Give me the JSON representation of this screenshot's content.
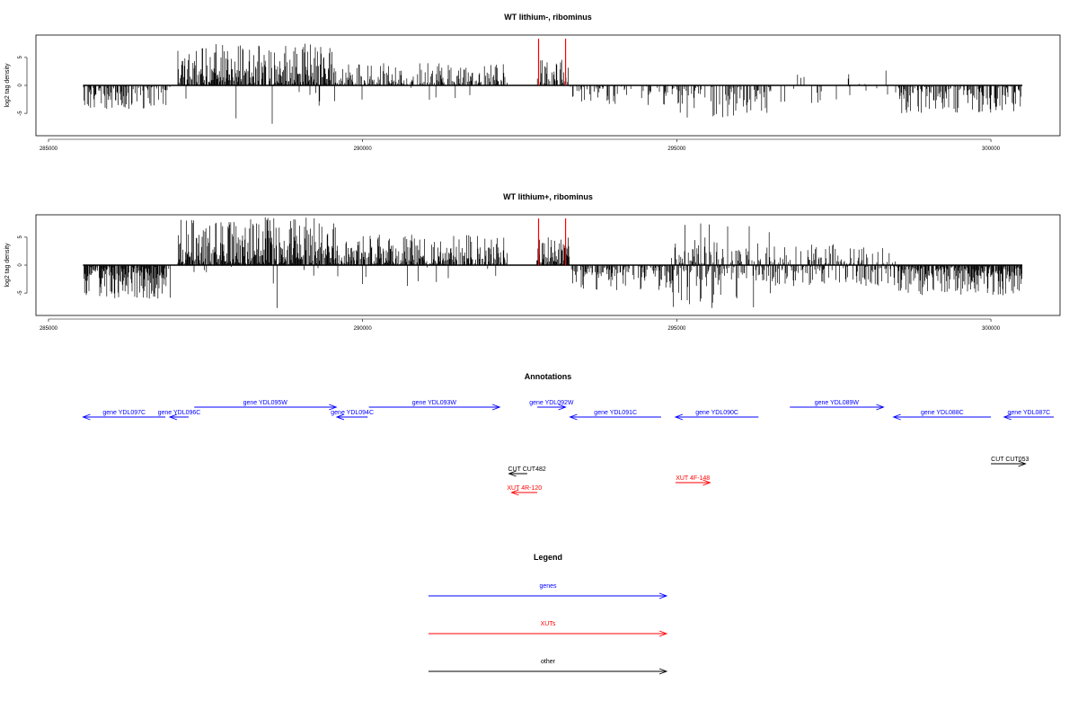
{
  "chart_data": [
    {
      "type": "bar",
      "title": "WT lithium-, ribominus",
      "xlabel": "",
      "ylabel": "log2 tag density",
      "xlim": [
        284800,
        301100
      ],
      "ylim": [
        -9,
        9
      ],
      "x_ticks": [
        285000,
        290000,
        295000,
        300000
      ],
      "y_ticks": [
        -5,
        0,
        5
      ],
      "baseline_range": [
        285550,
        300500
      ],
      "grid": false,
      "segments": [
        {
          "start": 285550,
          "end": 286950,
          "type": "neg",
          "mean": 2.3,
          "max": 4.2,
          "density": 0.55
        },
        {
          "start": 287050,
          "end": 289600,
          "type": "pos",
          "mean": 3.4,
          "max": 7.5,
          "density": 0.85
        },
        {
          "start": 289600,
          "end": 292300,
          "type": "pos",
          "mean": 1.8,
          "max": 4.0,
          "density": 0.55
        },
        {
          "start": 292750,
          "end": 293300,
          "type": "pos",
          "mean": 2.6,
          "max": 4.6,
          "density": 0.6
        },
        {
          "start": 293300,
          "end": 294900,
          "type": "neg",
          "mean": 1.5,
          "max": 3.5,
          "density": 0.3
        },
        {
          "start": 294900,
          "end": 296500,
          "type": "neg",
          "mean": 2.2,
          "max": 5.8,
          "density": 0.45
        },
        {
          "start": 296500,
          "end": 298500,
          "type": "mixed",
          "mean": 1.2,
          "max": 3.2,
          "density": 0.1
        },
        {
          "start": 298500,
          "end": 300500,
          "type": "neg",
          "mean": 2.4,
          "max": 5.0,
          "density": 0.55
        }
      ],
      "red_markers": [
        292800,
        293230
      ],
      "red_marker_height": 9
    },
    {
      "type": "bar",
      "title": "WT lithium+, ribominus",
      "xlabel": "",
      "ylabel": "log2 tag density",
      "xlim": [
        284800,
        301100
      ],
      "ylim": [
        -9,
        9
      ],
      "x_ticks": [
        285000,
        290000,
        295000,
        300000
      ],
      "y_ticks": [
        -5,
        0,
        5
      ],
      "baseline_range": [
        285550,
        300500
      ],
      "grid": false,
      "segments": [
        {
          "start": 285550,
          "end": 286950,
          "type": "neg",
          "mean": 2.8,
          "max": 6.0,
          "density": 0.9
        },
        {
          "start": 287050,
          "end": 289600,
          "type": "pos",
          "mean": 3.8,
          "max": 8.6,
          "density": 0.95
        },
        {
          "start": 289600,
          "end": 292300,
          "type": "pos",
          "mean": 2.4,
          "max": 5.5,
          "density": 0.8
        },
        {
          "start": 292750,
          "end": 293300,
          "type": "pos",
          "mean": 3.0,
          "max": 5.0,
          "density": 0.8
        },
        {
          "start": 293300,
          "end": 294900,
          "type": "neg",
          "mean": 1.8,
          "max": 4.5,
          "density": 0.6
        },
        {
          "start": 294900,
          "end": 296500,
          "type": "mixed",
          "mean": 2.4,
          "max": 7.7,
          "density": 0.9
        },
        {
          "start": 296500,
          "end": 298500,
          "type": "mixed",
          "mean": 1.9,
          "max": 3.8,
          "density": 0.75
        },
        {
          "start": 298500,
          "end": 300500,
          "type": "neg",
          "mean": 2.4,
          "max": 5.4,
          "density": 0.9
        }
      ],
      "red_markers": [
        292800,
        293230
      ],
      "red_marker_height": 9
    }
  ],
  "annotations": {
    "title": "Annotations",
    "genes": [
      {
        "label": "gene YDL097C",
        "start": 285550,
        "end": 286860,
        "row": 2
      },
      {
        "label": "gene YDL096C",
        "start": 286930,
        "end": 287230,
        "row": 2
      },
      {
        "label": "gene YDL095W",
        "start": 287320,
        "end": 289580,
        "row": 1
      },
      {
        "label": "gene YDL094C",
        "start": 289590,
        "end": 290080,
        "row": 2
      },
      {
        "label": "gene YDL093W",
        "start": 290100,
        "end": 292180,
        "row": 1
      },
      {
        "label": "gene YDL092W",
        "start": 292780,
        "end": 293230,
        "row": 1
      },
      {
        "label": "gene YDL091C",
        "start": 293300,
        "end": 294750,
        "row": 2
      },
      {
        "label": "gene YDL090C",
        "start": 294980,
        "end": 296300,
        "row": 2
      },
      {
        "label": "gene YDL089W",
        "start": 296800,
        "end": 298290,
        "row": 1
      },
      {
        "label": "gene YDL088C",
        "start": 298450,
        "end": 300000,
        "row": 2
      },
      {
        "label": "gene YDL087C",
        "start": 300210,
        "end": 301000,
        "row": 2
      }
    ],
    "cuts": [
      {
        "label": "CUT CUT482",
        "start": 292330,
        "end": 292620
      },
      {
        "label": "CUT CUT053",
        "start": 300000,
        "end": 300550
      }
    ],
    "xuts": [
      {
        "label": "XUT 4R-120",
        "start": 292370,
        "end": 292780
      },
      {
        "label": "XUT 4F-148",
        "start": 294980,
        "end": 295530
      }
    ]
  },
  "legend": {
    "title": "Legend",
    "items": [
      {
        "label": "genes",
        "color": "#0000ff"
      },
      {
        "label": "XUTs",
        "color": "#ff0000"
      },
      {
        "label": "other",
        "color": "#000000"
      }
    ]
  },
  "colors": {
    "gene": "#0000ff",
    "xut": "#ff0000",
    "cut": "#000000",
    "bars": "#000000",
    "red_marker": "#ff0000"
  }
}
